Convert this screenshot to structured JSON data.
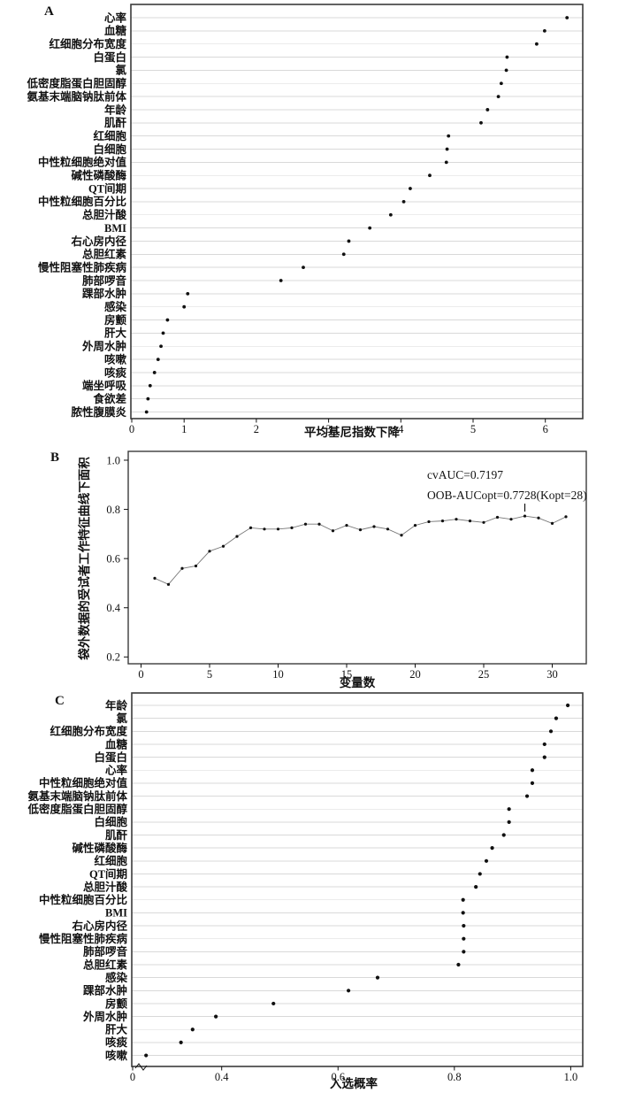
{
  "figure": {
    "colors": {
      "background": "#ffffff",
      "dot": "#111111",
      "line": "#777777",
      "grid": "#d9d9d9",
      "border": "#3b3b3b",
      "text": "#111111"
    }
  },
  "chart_data": [
    {
      "panel": "A",
      "type": "scatter",
      "subtype": "variable-importance-dotchart",
      "xlabel": "平均基尼指数下降",
      "xlim": [
        0.26,
        6.53
      ],
      "grid": true,
      "xticks": [
        {
          "v": 0,
          "label": "0"
        },
        {
          "v": 1,
          "label": "1"
        },
        {
          "v": 2,
          "label": "2"
        },
        {
          "v": 3,
          "label": "3"
        },
        {
          "v": 4,
          "label": "4"
        },
        {
          "v": 5,
          "label": "5"
        },
        {
          "v": 6,
          "label": "6"
        }
      ],
      "categories": [
        "心率",
        "血糖",
        "红细胞分布宽度",
        "白蛋白",
        "氯",
        "低密度脂蛋白胆固醇",
        "氨基末端脑钠肽前体",
        "年龄",
        "肌酐",
        "红细胞",
        "白细胞",
        "中性粒细胞绝对值",
        "碱性磷酸酶",
        "QT间期",
        "中性粒细胞百分比",
        "总胆汁酸",
        "BMI",
        "右心房内径",
        "总胆红素",
        "慢性阻塞性肺疾病",
        "肺部啰音",
        "踝部水肿",
        "感染",
        "房颤",
        "肝大",
        "外周水肿",
        "咳嗽",
        "咳痰",
        "端坐呼吸",
        "食欲差",
        "脓性腹膜炎"
      ],
      "values": [
        6.3,
        5.99,
        5.88,
        5.47,
        5.46,
        5.39,
        5.35,
        5.2,
        5.11,
        4.66,
        4.64,
        4.63,
        4.4,
        4.13,
        4.04,
        3.86,
        3.57,
        3.28,
        3.21,
        2.65,
        2.34,
        1.05,
        1.0,
        0.77,
        0.71,
        0.68,
        0.64,
        0.59,
        0.53,
        0.5,
        0.48
      ]
    },
    {
      "panel": "B",
      "type": "line",
      "xlabel": "变量数",
      "ylabel": "袋外数据的受试者工作特征曲线下面积",
      "xlim": [
        -1,
        32.5
      ],
      "ylim": [
        0.17,
        1.05
      ],
      "grid": false,
      "legend": "none",
      "xticks": [
        {
          "v": 0,
          "label": "0"
        },
        {
          "v": 5,
          "label": "5"
        },
        {
          "v": 10,
          "label": "10"
        },
        {
          "v": 15,
          "label": "15"
        },
        {
          "v": 20,
          "label": "20"
        },
        {
          "v": 25,
          "label": "25"
        },
        {
          "v": 30,
          "label": "30"
        }
      ],
      "yticks": [
        {
          "v": 0.2,
          "label": "0.2"
        },
        {
          "v": 0.4,
          "label": "0.4"
        },
        {
          "v": 0.6,
          "label": "0.6"
        },
        {
          "v": 0.8,
          "label": "0.8"
        },
        {
          "v": 1.0,
          "label": "1.0"
        }
      ],
      "x": [
        1,
        2,
        3,
        4,
        5,
        6,
        7,
        8,
        9,
        10,
        11,
        12,
        13,
        14,
        15,
        16,
        17,
        18,
        19,
        20,
        21,
        22,
        23,
        24,
        25,
        26,
        27,
        28,
        29,
        30,
        31
      ],
      "y": [
        0.52,
        0.495,
        0.56,
        0.57,
        0.63,
        0.65,
        0.69,
        0.725,
        0.72,
        0.72,
        0.725,
        0.74,
        0.74,
        0.713,
        0.735,
        0.717,
        0.73,
        0.72,
        0.695,
        0.735,
        0.75,
        0.753,
        0.76,
        0.753,
        0.747,
        0.768,
        0.76,
        0.773,
        0.765,
        0.743,
        0.77
      ],
      "annotations": [
        "cvAUC=0.7197",
        "OOB-AUCopt=0.7728(Kopt=28)"
      ],
      "optimal_x": 28,
      "optimal_y": 0.773
    },
    {
      "panel": "C",
      "type": "scatter",
      "subtype": "selection-probability-dotchart",
      "xlabel": "入选概率",
      "xlim": [
        0.245,
        1.02
      ],
      "axis_break_at_zero": true,
      "grid": true,
      "xticks": [
        {
          "v": 0,
          "label": "0"
        },
        {
          "v": 0.4,
          "label": "0.4"
        },
        {
          "v": 0.6,
          "label": "0.6"
        },
        {
          "v": 0.8,
          "label": "0.8"
        },
        {
          "v": 1.0,
          "label": "1.0"
        }
      ],
      "categories": [
        "年龄",
        "氯",
        "红细胞分布宽度",
        "血糖",
        "白蛋白",
        "心率",
        "中性粒细胞绝对值",
        "氨基末端脑钠肽前体",
        "低密度脂蛋白胆固醇",
        "白细胞",
        "肌酐",
        "碱性磷酸酶",
        "红细胞",
        "QT间期",
        "总胆汁酸",
        "中性粒细胞百分比",
        "BMI",
        "右心房内径",
        "慢性阻塞性肺疾病",
        "肺部啰音",
        "总胆红素",
        "感染",
        "踝部水肿",
        "房颤",
        "外周水肿",
        "肝大",
        "咳痰",
        "咳嗽"
      ],
      "values": [
        0.995,
        0.975,
        0.966,
        0.955,
        0.955,
        0.934,
        0.934,
        0.925,
        0.894,
        0.894,
        0.885,
        0.865,
        0.855,
        0.844,
        0.837,
        0.815,
        0.815,
        0.816,
        0.816,
        0.816,
        0.807,
        0.668,
        0.618,
        0.489,
        0.39,
        0.35,
        0.33,
        0.27
      ]
    }
  ]
}
